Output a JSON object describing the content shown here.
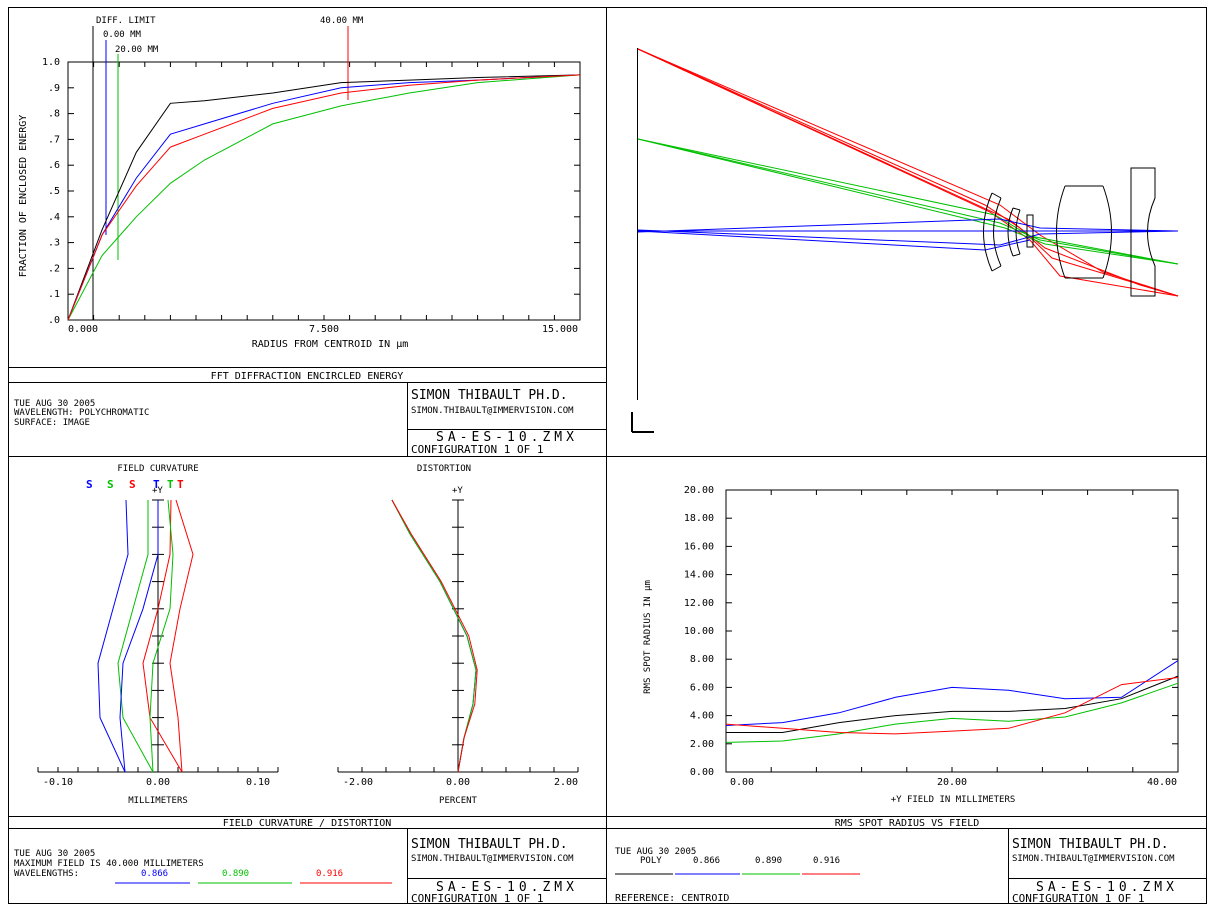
{
  "colors": {
    "blue": "#0000ff",
    "green": "#00c000",
    "red": "#ff0000",
    "black": "#000000"
  },
  "panel_ee": {
    "chart_title": "FFT DIFFRACTION ENCIRCLED ENERGY",
    "ylabel": "FRACTION OF ENCLOSED ENERGY",
    "xlabel": "RADIUS FROM CENTROID IN µm",
    "x_ticks": [
      "0.000",
      "7.500",
      "15.000"
    ],
    "y_ticks": [
      ".0",
      ".1",
      ".2",
      ".3",
      ".4",
      ".5",
      ".6",
      ".7",
      ".8",
      ".9",
      "1.0"
    ],
    "annotations": {
      "diff_limit": "DIFF. LIMIT",
      "field_0": "0.00 MM",
      "field_20": "20.00 MM",
      "field_40": "40.00 MM"
    }
  },
  "panel_fc": {
    "chart_title": "FIELD CURVATURE / DISTORTION",
    "fc_title": "FIELD CURVATURE",
    "dist_title": "DISTORTION",
    "st_labels": [
      "S",
      "S",
      "S",
      "T",
      "T",
      "T"
    ],
    "plus_y_fc": "+Y",
    "plus_y_dist": "+Y",
    "fc_x_ticks": [
      "-0.10",
      "0.00",
      "0.10"
    ],
    "fc_xlabel": "MILLIMETERS",
    "dist_x_ticks": [
      "-2.00",
      "0.00",
      "2.00"
    ],
    "dist_xlabel": "PERCENT"
  },
  "panel_rms": {
    "chart_title": "RMS SPOT RADIUS VS FIELD",
    "ylabel": "RMS SPOT RADIUS IN µm",
    "xlabel": "+Y FIELD IN MILLIMETERS",
    "x_ticks": [
      "0.00",
      "20.00",
      "40.00"
    ],
    "y_ticks": [
      "0.00",
      "2.00",
      "4.00",
      "6.00",
      "8.00",
      "10.00",
      "12.00",
      "14.00",
      "16.00",
      "18.00",
      "20.00"
    ]
  },
  "info_ee": {
    "date": "TUE AUG 30 2005",
    "line2": "WAVELENGTH: POLYCHROMATIC",
    "line3": "SURFACE: IMAGE",
    "author": "SIMON THIBAULT PH.D.",
    "email": "SIMON.THIBAULT@IMMERVISION.COM",
    "file": "SA-ES-10.ZMX",
    "config": "CONFIGURATION 1 OF 1"
  },
  "info_fc": {
    "date": "TUE AUG 30 2005",
    "line2": "MAXIMUM FIELD IS 40.000 MILLIMETERS",
    "wl_label": "WAVELENGTHS:",
    "wl": [
      "0.866",
      "0.890",
      "0.916"
    ],
    "author": "SIMON THIBAULT PH.D.",
    "email": "SIMON.THIBAULT@IMMERVISION.COM",
    "file": "SA-ES-10.ZMX",
    "config": "CONFIGURATION 1 OF 1"
  },
  "info_rms": {
    "date": "TUE AUG 30 2005",
    "poly": "POLY",
    "wl": [
      "0.866",
      "0.890",
      "0.916"
    ],
    "reference": "REFERENCE: CENTROID",
    "author": "SIMON THIBAULT PH.D.",
    "email": "SIMON.THIBAULT@IMMERVISION.COM",
    "file": "SA-ES-10.ZMX",
    "config": "CONFIGURATION 1 OF 1"
  },
  "chart_data": [
    {
      "type": "line",
      "title": "FFT DIFFRACTION ENCIRCLED ENERGY",
      "xlabel": "RADIUS FROM CENTROID IN µm",
      "ylabel": "FRACTION OF ENCLOSED ENERGY",
      "xlim": [
        0,
        15
      ],
      "ylim": [
        0,
        1
      ],
      "grid": false,
      "series": [
        {
          "name": "DIFF. LIMIT",
          "color": "black",
          "x": [
            0,
            1,
            2,
            3,
            4,
            6,
            8,
            10,
            12,
            15
          ],
          "y": [
            0,
            0.35,
            0.65,
            0.84,
            0.85,
            0.88,
            0.92,
            0.93,
            0.94,
            0.95
          ]
        },
        {
          "name": "0.00 MM",
          "color": "blue",
          "x": [
            0,
            1,
            2,
            3,
            4,
            6,
            8,
            10,
            12,
            15
          ],
          "y": [
            0,
            0.33,
            0.55,
            0.72,
            0.76,
            0.84,
            0.9,
            0.92,
            0.93,
            0.95
          ]
        },
        {
          "name": "20.00 MM",
          "color": "green",
          "x": [
            0,
            1,
            2,
            3,
            4,
            6,
            8,
            10,
            12,
            15
          ],
          "y": [
            0,
            0.25,
            0.4,
            0.53,
            0.62,
            0.76,
            0.83,
            0.88,
            0.92,
            0.95
          ]
        },
        {
          "name": "40.00 MM",
          "color": "red",
          "x": [
            0,
            1,
            2,
            3,
            4,
            6,
            8,
            10,
            12,
            15
          ],
          "y": [
            0,
            0.33,
            0.52,
            0.67,
            0.72,
            0.82,
            0.88,
            0.91,
            0.93,
            0.95
          ]
        }
      ]
    },
    {
      "type": "line",
      "title": "FIELD CURVATURE",
      "xlabel": "MILLIMETERS",
      "xlim": [
        -0.1,
        0.1
      ],
      "ylim": [
        0,
        40
      ],
      "series": [
        {
          "color": "blue",
          "x": [
            -0.033,
            -0.058,
            -0.06,
            -0.045,
            -0.03,
            -0.032
          ],
          "y": [
            0,
            8,
            16,
            24,
            32,
            40
          ]
        },
        {
          "color": "green",
          "x": [
            -0.005,
            -0.035,
            -0.04,
            -0.025,
            -0.01,
            -0.01
          ],
          "y": [
            0,
            8,
            16,
            24,
            32,
            40
          ]
        },
        {
          "color": "red",
          "x": [
            0.024,
            -0.008,
            -0.015,
            0.0,
            0.012,
            0.013
          ],
          "y": [
            0,
            8,
            16,
            24,
            32,
            40
          ]
        },
        {
          "color": "blue",
          "x": [
            -0.033,
            -0.038,
            -0.035,
            -0.015,
            0.0,
            0.0
          ],
          "y": [
            0,
            8,
            16,
            24,
            32,
            40
          ]
        },
        {
          "color": "green",
          "x": [
            -0.005,
            -0.008,
            -0.005,
            0.012,
            0.015,
            0.01
          ],
          "y": [
            0,
            8,
            16,
            24,
            32,
            40
          ]
        },
        {
          "color": "red",
          "x": [
            0.024,
            0.02,
            0.012,
            0.022,
            0.035,
            0.018
          ],
          "y": [
            0,
            8,
            16,
            24,
            32,
            40
          ]
        }
      ]
    },
    {
      "type": "line",
      "title": "DISTORTION",
      "xlabel": "PERCENT",
      "xlim": [
        -2,
        2
      ],
      "ylim": [
        0,
        40
      ],
      "series": [
        {
          "color": "blue",
          "x": [
            0,
            0.1,
            0.25,
            0.3,
            0.15,
            -0.3,
            -0.8,
            -1.1
          ],
          "y": [
            0,
            5,
            10,
            15,
            20,
            28,
            35,
            40
          ]
        },
        {
          "color": "green",
          "x": [
            0,
            0.1,
            0.25,
            0.3,
            0.15,
            -0.3,
            -0.8,
            -1.1
          ],
          "y": [
            0,
            5,
            10,
            15,
            20,
            28,
            35,
            40
          ]
        },
        {
          "color": "red",
          "x": [
            0,
            0.1,
            0.28,
            0.32,
            0.18,
            -0.28,
            -0.78,
            -1.1
          ],
          "y": [
            0,
            5,
            10,
            15,
            20,
            28,
            35,
            40
          ]
        }
      ]
    },
    {
      "type": "line",
      "title": "RMS SPOT RADIUS VS FIELD",
      "xlabel": "+Y FIELD IN MILLIMETERS",
      "ylabel": "RMS SPOT RADIUS IN µm",
      "xlim": [
        0,
        40
      ],
      "ylim": [
        0,
        20
      ],
      "series": [
        {
          "name": "POLY",
          "color": "black",
          "x": [
            0,
            5,
            10,
            15,
            20,
            25,
            30,
            35,
            40
          ],
          "y": [
            2.8,
            2.8,
            3.5,
            4.0,
            4.3,
            4.3,
            4.5,
            5.2,
            6.8
          ]
        },
        {
          "name": "0.866",
          "color": "blue",
          "x": [
            0,
            5,
            10,
            15,
            20,
            25,
            30,
            35,
            40
          ],
          "y": [
            3.3,
            3.5,
            4.2,
            5.3,
            6.0,
            5.8,
            5.2,
            5.3,
            7.9
          ]
        },
        {
          "name": "0.890",
          "color": "green",
          "x": [
            0,
            5,
            10,
            15,
            20,
            25,
            30,
            35,
            40
          ],
          "y": [
            2.1,
            2.2,
            2.7,
            3.4,
            3.8,
            3.6,
            3.9,
            4.9,
            6.3
          ]
        },
        {
          "name": "0.916",
          "color": "red",
          "x": [
            0,
            5,
            10,
            15,
            20,
            25,
            30,
            35,
            40
          ],
          "y": [
            3.4,
            3.1,
            2.8,
            2.7,
            2.9,
            3.1,
            4.2,
            6.2,
            6.7
          ]
        }
      ]
    }
  ]
}
